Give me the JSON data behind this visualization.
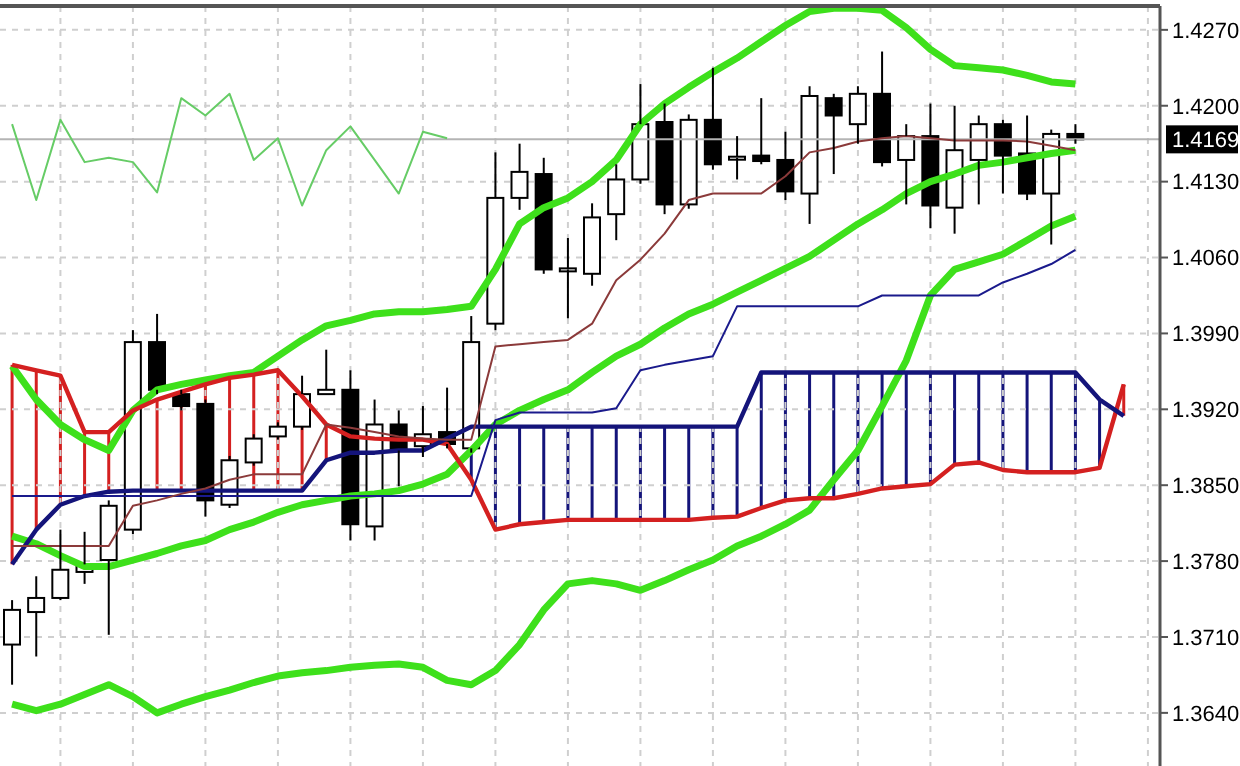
{
  "chart_data": {
    "type": "candlestick",
    "categories": [
      null,
      null,
      null,
      null,
      null,
      null,
      null,
      null,
      null,
      null,
      null,
      null,
      null,
      null,
      null,
      null,
      null,
      null,
      null,
      null,
      null,
      null,
      null,
      null,
      null,
      null,
      null,
      null,
      null,
      null,
      null,
      null,
      null,
      null,
      null,
      null,
      null,
      null,
      null,
      null,
      null,
      null,
      null,
      null,
      null,
      null,
      null
    ],
    "ohlc": [
      [
        1.3703,
        1.3744,
        1.3666,
        1.3735
      ],
      [
        1.3733,
        1.3766,
        1.3692,
        1.3746
      ],
      [
        1.3746,
        1.3809,
        1.3744,
        1.3772
      ],
      [
        1.377,
        1.3807,
        1.3759,
        1.3777
      ],
      [
        1.3781,
        1.3836,
        1.3712,
        1.3831
      ],
      [
        1.3809,
        1.3993,
        1.3805,
        1.3982
      ],
      [
        1.3982,
        1.4008,
        1.3934,
        1.3938
      ],
      [
        1.3934,
        1.3938,
        1.3919,
        1.3923
      ],
      [
        1.3925,
        1.3929,
        1.3821,
        1.3836
      ],
      [
        1.3832,
        1.3877,
        1.3829,
        1.3873
      ],
      [
        1.3871,
        1.3897,
        1.3868,
        1.3893
      ],
      [
        1.3895,
        1.3908,
        1.3892,
        1.3904
      ],
      [
        1.3904,
        1.3951,
        1.3901,
        1.3934
      ],
      [
        1.3934,
        1.3975,
        1.3934,
        1.3938
      ],
      [
        1.3938,
        1.3956,
        1.3799,
        1.3814
      ],
      [
        1.3812,
        1.3929,
        1.3799,
        1.3906
      ],
      [
        1.3906,
        1.3919,
        1.3849,
        1.3882
      ],
      [
        1.3886,
        1.3923,
        1.3876,
        1.3897
      ],
      [
        1.3899,
        1.394,
        1.3884,
        1.3888
      ],
      [
        1.3884,
        1.4006,
        1.388,
        1.3982
      ],
      [
        1.3999,
        1.4157,
        1.3993,
        1.4115
      ],
      [
        1.4115,
        1.4165,
        1.4104,
        1.4139
      ],
      [
        1.4137,
        1.4152,
        1.4045,
        1.4049
      ],
      [
        1.4049,
        1.4078,
        1.4004,
        1.405
      ],
      [
        1.4045,
        1.411,
        1.4034,
        1.4097
      ],
      [
        1.41,
        1.4146,
        1.4076,
        1.4132
      ],
      [
        1.4132,
        1.422,
        1.4128,
        1.4183
      ],
      [
        1.4185,
        1.4202,
        1.41,
        1.4109
      ],
      [
        1.4109,
        1.4192,
        1.4105,
        1.4187
      ],
      [
        1.4187,
        1.4235,
        1.4141,
        1.4146
      ],
      [
        1.4152,
        1.4172,
        1.4132,
        1.4153
      ],
      [
        1.4154,
        1.4207,
        1.4146,
        1.4149
      ],
      [
        1.415,
        1.4176,
        1.4113,
        1.4121
      ],
      [
        1.4119,
        1.4218,
        1.4091,
        1.4209
      ],
      [
        1.4207,
        1.4211,
        1.4137,
        1.4191
      ],
      [
        1.4183,
        1.4218,
        1.4165,
        1.4211
      ],
      [
        1.4211,
        1.425,
        1.4144,
        1.4148
      ],
      [
        1.415,
        1.4183,
        1.4109,
        1.4172
      ],
      [
        1.4172,
        1.4202,
        1.4087,
        1.4108
      ],
      [
        1.4106,
        1.42,
        1.4082,
        1.4159
      ],
      [
        1.415,
        1.4191,
        1.4109,
        1.4183
      ],
      [
        1.4183,
        1.4187,
        1.4119,
        1.4154
      ],
      [
        1.4156,
        1.4191,
        1.4113,
        1.4119
      ],
      [
        1.4119,
        1.4178,
        1.4072,
        1.4174
      ],
      [
        1.4174,
        1.4183,
        1.4165,
        1.4169
      ],
      null,
      null
    ],
    "series": [
      {
        "type": "line",
        "color": "#3ee01b",
        "values": [
          1.396,
          1.3929,
          1.3906,
          1.3892,
          1.3882,
          1.3919,
          1.3938,
          1.3943,
          1.3947,
          1.3951,
          1.3954,
          1.3969,
          1.3984,
          1.3997,
          1.4002,
          1.4008,
          1.401,
          1.401,
          1.4012,
          1.4015,
          1.4049,
          1.4091,
          1.4106,
          1.4115,
          1.413,
          1.415,
          1.4183,
          1.4202,
          1.4217,
          1.4231,
          1.4244,
          1.4259,
          1.4274,
          1.4287,
          1.429,
          1.429,
          1.4288,
          1.4272,
          1.4252,
          1.4237,
          1.4235,
          1.4233,
          1.4228,
          1.4222,
          1.422,
          null,
          null
        ]
      },
      {
        "type": "line",
        "color": "#3ee01b",
        "values": [
          1.3803,
          1.3796,
          1.3785,
          1.3775,
          1.3775,
          1.3781,
          1.3787,
          1.3794,
          1.3799,
          1.3809,
          1.3816,
          1.3825,
          1.3832,
          1.3836,
          1.384,
          1.3842,
          1.3845,
          1.3851,
          1.386,
          1.3882,
          1.3906,
          1.3919,
          1.3929,
          1.3938,
          1.3954,
          1.3969,
          1.398,
          1.3995,
          1.4008,
          1.4017,
          1.4028,
          1.4039,
          1.405,
          1.4061,
          1.4076,
          1.4091,
          1.4104,
          1.4119,
          1.413,
          1.4137,
          1.4145,
          1.4148,
          1.4152,
          1.4156,
          1.4159,
          null,
          null
        ]
      },
      {
        "type": "line",
        "color": "#3ee01b",
        "values": [
          1.3648,
          1.3642,
          1.3648,
          1.3657,
          1.3666,
          1.3655,
          1.364,
          1.3648,
          1.3655,
          1.3661,
          1.3668,
          1.3674,
          1.3677,
          1.3679,
          1.3682,
          1.3684,
          1.3685,
          1.3682,
          1.367,
          1.3666,
          1.3679,
          1.3703,
          1.3735,
          1.3759,
          1.3762,
          1.3759,
          1.3753,
          1.3762,
          1.3772,
          1.3781,
          1.3794,
          1.3803,
          1.3814,
          1.3827,
          1.3855,
          1.3882,
          1.3923,
          1.3965,
          1.4025,
          1.4049,
          1.4056,
          1.4063,
          1.4076,
          1.4089,
          1.4098,
          null,
          null
        ]
      },
      {
        "type": "line",
        "color": "#d42020",
        "values": [
          1.3961,
          1.3956,
          1.3951,
          1.3899,
          1.3899,
          1.3919,
          1.3929,
          1.3936,
          1.3943,
          1.3949,
          1.3952,
          1.3956,
          1.3932,
          1.3906,
          1.3895,
          1.3893,
          1.3892,
          1.3892,
          1.3888,
          1.3855,
          1.3809,
          1.3814,
          1.3816,
          1.3818,
          1.3818,
          1.3818,
          1.3818,
          1.3818,
          1.3818,
          1.382,
          1.3821,
          1.3829,
          1.3836,
          1.3838,
          1.3838,
          1.3842,
          1.3847,
          1.3849,
          1.3851,
          1.3869,
          1.3871,
          1.3864,
          1.3862,
          1.3862,
          1.3862,
          1.3866,
          1.3943
        ]
      },
      {
        "type": "line",
        "color": "#14147a",
        "values": [
          1.3777,
          1.3809,
          1.3832,
          1.384,
          1.3844,
          1.3845,
          1.3845,
          1.3845,
          1.3845,
          1.3845,
          1.3845,
          1.3845,
          1.3845,
          1.3873,
          1.388,
          1.388,
          1.3882,
          1.3882,
          1.3893,
          1.3904,
          1.3904,
          1.3904,
          1.3904,
          1.3904,
          1.3904,
          1.3904,
          1.3904,
          1.3904,
          1.3904,
          1.3904,
          1.3904,
          1.3954,
          1.3954,
          1.3954,
          1.3954,
          1.3954,
          1.3954,
          1.3954,
          1.3954,
          1.3954,
          1.3954,
          1.3954,
          1.3954,
          1.3954,
          1.3954,
          1.3929,
          1.3914
        ]
      },
      {
        "type": "line",
        "color": "#1a1a8c",
        "values": [
          1.384,
          1.384,
          1.384,
          1.384,
          1.384,
          1.384,
          1.384,
          1.384,
          1.384,
          1.384,
          1.384,
          1.384,
          1.384,
          1.384,
          1.384,
          1.384,
          1.384,
          1.384,
          1.384,
          1.384,
          1.391,
          1.3917,
          1.3917,
          1.3917,
          1.3917,
          1.3921,
          1.3956,
          1.3961,
          1.3965,
          1.3969,
          1.4015,
          1.4015,
          1.4015,
          1.4015,
          1.4015,
          1.4015,
          1.4025,
          1.4025,
          1.4025,
          1.4025,
          1.4025,
          1.4037,
          1.4045,
          1.4054,
          1.4067,
          null,
          null
        ]
      },
      {
        "type": "line",
        "color": "#8b3a3a",
        "values": [
          1.3794,
          1.3794,
          1.3794,
          1.3794,
          1.3794,
          1.3831,
          1.3836,
          1.3842,
          1.3847,
          1.3855,
          1.386,
          1.386,
          1.386,
          1.3906,
          1.3903,
          1.3899,
          1.3895,
          1.3893,
          1.3892,
          1.3892,
          1.3978,
          1.398,
          1.3982,
          1.3984,
          1.3999,
          1.4039,
          1.4058,
          1.4082,
          1.4113,
          1.4119,
          1.4119,
          1.4119,
          1.4135,
          1.4157,
          1.4161,
          1.4167,
          1.417,
          1.4172,
          1.417,
          1.4168,
          1.4168,
          1.4168,
          1.4167,
          1.4163,
          1.4159,
          null,
          null
        ]
      },
      {
        "type": "line",
        "color": "#66cc66",
        "values": [
          1.4183,
          1.4113,
          1.4187,
          1.4148,
          1.4152,
          1.4148,
          1.412,
          1.4207,
          1.4191,
          1.4211,
          1.415,
          1.417,
          1.4108,
          1.4159,
          1.4181,
          1.415,
          1.4119,
          1.4176,
          1.417,
          null,
          null,
          null,
          null,
          null,
          null,
          null,
          null,
          null,
          null,
          null,
          null,
          null,
          null,
          null,
          null,
          null,
          null,
          null,
          null,
          null,
          null,
          null,
          null,
          null,
          null,
          null,
          null
        ]
      }
    ],
    "ylim": [
      1.3591,
      1.4292
    ],
    "yticks": [
      {
        "value": 1.364,
        "label": "1.3640"
      },
      {
        "value": 1.371,
        "label": "1.3710"
      },
      {
        "value": 1.378,
        "label": "1.3780"
      },
      {
        "value": 1.385,
        "label": "1.3850"
      },
      {
        "value": 1.392,
        "label": "1.3920"
      },
      {
        "value": 1.399,
        "label": "1.3990"
      },
      {
        "value": 1.406,
        "label": "1.4060"
      },
      {
        "value": 1.413,
        "label": "1.4130"
      },
      {
        "value": 1.42,
        "label": "1.4200"
      },
      {
        "value": 1.427,
        "label": "1.4270"
      }
    ],
    "ref_lines": [
      {
        "axis": "y",
        "value": 1.4169,
        "label": "1.4169",
        "color": "#b4b4b4"
      }
    ],
    "grid": true,
    "tick_labels": "y"
  }
}
